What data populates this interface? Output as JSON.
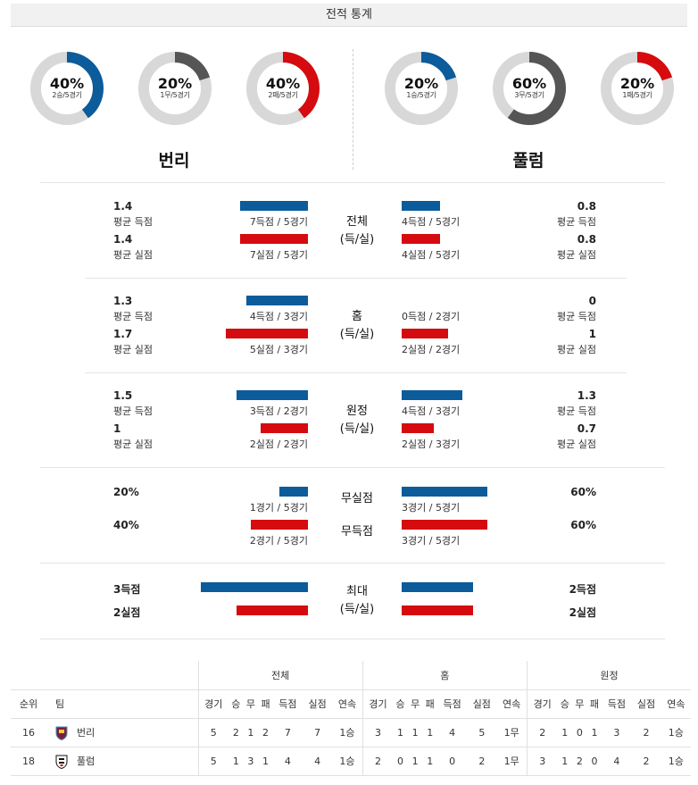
{
  "header": {
    "title": "전적 통계"
  },
  "donuts": [
    {
      "pct": "40%",
      "sub": "2승/5경기",
      "value": 0.4,
      "color": "#0c5b9b"
    },
    {
      "pct": "20%",
      "sub": "1무/5경기",
      "value": 0.2,
      "color": "#555555"
    },
    {
      "pct": "40%",
      "sub": "2패/5경기",
      "value": 0.4,
      "color": "#d50b0f"
    },
    {
      "pct": "20%",
      "sub": "1승/5경기",
      "value": 0.2,
      "color": "#0c5b9b"
    },
    {
      "pct": "60%",
      "sub": "3무/5경기",
      "value": 0.6,
      "color": "#555555"
    },
    {
      "pct": "20%",
      "sub": "1패/5경기",
      "value": 0.2,
      "color": "#d50b0f"
    }
  ],
  "teams": {
    "home": "번리",
    "away": "풀럼"
  },
  "sections": {
    "overall": {
      "title": "전체",
      "subtitle": "(득/실)",
      "home": {
        "scored_val": "1.4",
        "scored_lbl": "평균 득점",
        "scored_cap": "7득점 / 5경기",
        "conceded_val": "1.4",
        "conceded_lbl": "평균 실점",
        "conceded_cap": "7실점 / 5경기"
      },
      "away": {
        "scored_val": "0.8",
        "scored_lbl": "평균 득점",
        "scored_cap": "4득점 / 5경기",
        "conceded_val": "0.8",
        "conceded_lbl": "평균 실점",
        "conceded_cap": "4실점 / 5경기"
      }
    },
    "home_games": {
      "title": "홈",
      "subtitle": "(득/실)",
      "home": {
        "scored_val": "1.3",
        "scored_lbl": "평균 득점",
        "scored_cap": "4득점 / 3경기",
        "conceded_val": "1.7",
        "conceded_lbl": "평균 실점",
        "conceded_cap": "5실점 / 3경기"
      },
      "away": {
        "scored_val": "0",
        "scored_lbl": "평균 득점",
        "scored_cap": "0득점 / 2경기",
        "conceded_val": "1",
        "conceded_lbl": "평균 실점",
        "conceded_cap": "2실점 / 2경기"
      }
    },
    "away_games": {
      "title": "원정",
      "subtitle": "(득/실)",
      "home": {
        "scored_val": "1.5",
        "scored_lbl": "평균 득점",
        "scored_cap": "3득점 / 2경기",
        "conceded_val": "1",
        "conceded_lbl": "평균 실점",
        "conceded_cap": "2실점 / 2경기"
      },
      "away": {
        "scored_val": "1.3",
        "scored_lbl": "평균 득점",
        "scored_cap": "4득점 / 3경기",
        "conceded_val": "0.7",
        "conceded_lbl": "평균 실점",
        "conceded_cap": "2실점 / 3경기"
      }
    },
    "clean": {
      "clean_title": "무실점",
      "noscore_title": "무득점",
      "home": {
        "clean_val": "20%",
        "clean_cap": "1경기 / 5경기",
        "noscore_val": "40%",
        "noscore_cap": "2경기 / 5경기"
      },
      "away": {
        "clean_val": "60%",
        "clean_cap": "3경기 / 5경기",
        "noscore_val": "60%",
        "noscore_cap": "3경기 / 5경기"
      }
    },
    "max": {
      "title": "최대",
      "subtitle": "(득/실)",
      "home": {
        "scored": "3득점",
        "conceded": "2실점"
      },
      "away": {
        "scored": "2득점",
        "conceded": "2실점"
      }
    }
  },
  "standings": {
    "group_overall": "전체",
    "group_home": "홈",
    "group_away": "원정",
    "col_rank": "순위",
    "col_team": "팀",
    "cols": [
      "경기",
      "승",
      "무",
      "패",
      "득점",
      "실점",
      "연속"
    ],
    "rows": [
      {
        "rank": "16",
        "team": "번리",
        "overall": [
          "5",
          "2",
          "1",
          "2",
          "7",
          "7",
          "1승"
        ],
        "home": [
          "3",
          "1",
          "1",
          "1",
          "4",
          "5",
          "1무"
        ],
        "away": [
          "2",
          "1",
          "0",
          "1",
          "3",
          "2",
          "1승"
        ]
      },
      {
        "rank": "18",
        "team": "풀럼",
        "overall": [
          "5",
          "1",
          "3",
          "1",
          "4",
          "4",
          "1승"
        ],
        "home": [
          "2",
          "0",
          "1",
          "1",
          "0",
          "2",
          "1무"
        ],
        "away": [
          "3",
          "1",
          "2",
          "0",
          "4",
          "2",
          "1승"
        ]
      }
    ]
  },
  "colors": {
    "blue": "#0c5b9b",
    "red": "#d50b0f",
    "gray": "#555555",
    "track": "#d8d8d8"
  }
}
